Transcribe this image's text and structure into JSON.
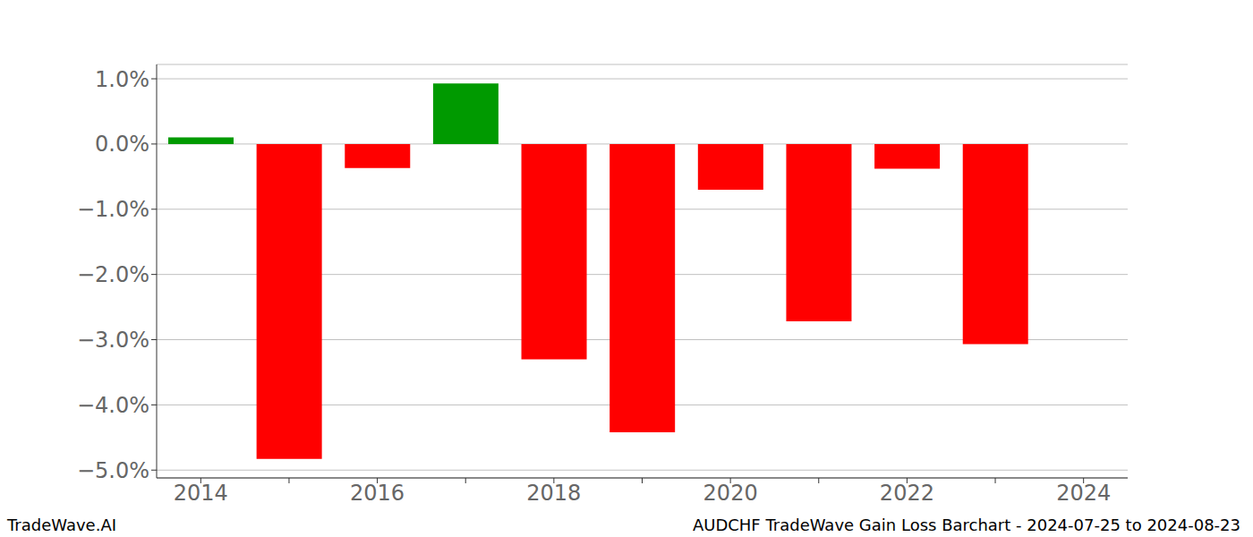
{
  "chart_data": {
    "type": "bar",
    "title": "AUDCHF TradeWave Gain Loss Barchart - 2024-07-25 to 2024-08-23",
    "annotations": [
      "TradeWave.AI"
    ],
    "categories": [
      "2014",
      null,
      "2016",
      null,
      "2018",
      null,
      "2020",
      null,
      "2022",
      null,
      "2024"
    ],
    "values": [
      0.1,
      -4.83,
      -0.37,
      0.93,
      -3.3,
      -4.42,
      -0.7,
      -2.72,
      -0.38,
      -3.07,
      null
    ],
    "colors": [
      "#009a00",
      "#ff0000",
      "#ff0000",
      "#009a00",
      "#ff0000",
      "#ff0000",
      "#ff0000",
      "#ff0000",
      "#ff0000",
      "#ff0000",
      "#ff0000"
    ],
    "ylim": [
      -5.12,
      1.22
    ],
    "yticks": [
      {
        "value": -5,
        "label": "−5.0%"
      },
      {
        "value": -4,
        "label": "−4.0%"
      },
      {
        "value": -3,
        "label": "−3.0%"
      },
      {
        "value": -2,
        "label": "−2.0%"
      },
      {
        "value": -1,
        "label": "−1.0%"
      },
      {
        "value": 0,
        "label": "0.0%"
      },
      {
        "value": 1,
        "label": "1.0%"
      }
    ],
    "grid": true
  }
}
